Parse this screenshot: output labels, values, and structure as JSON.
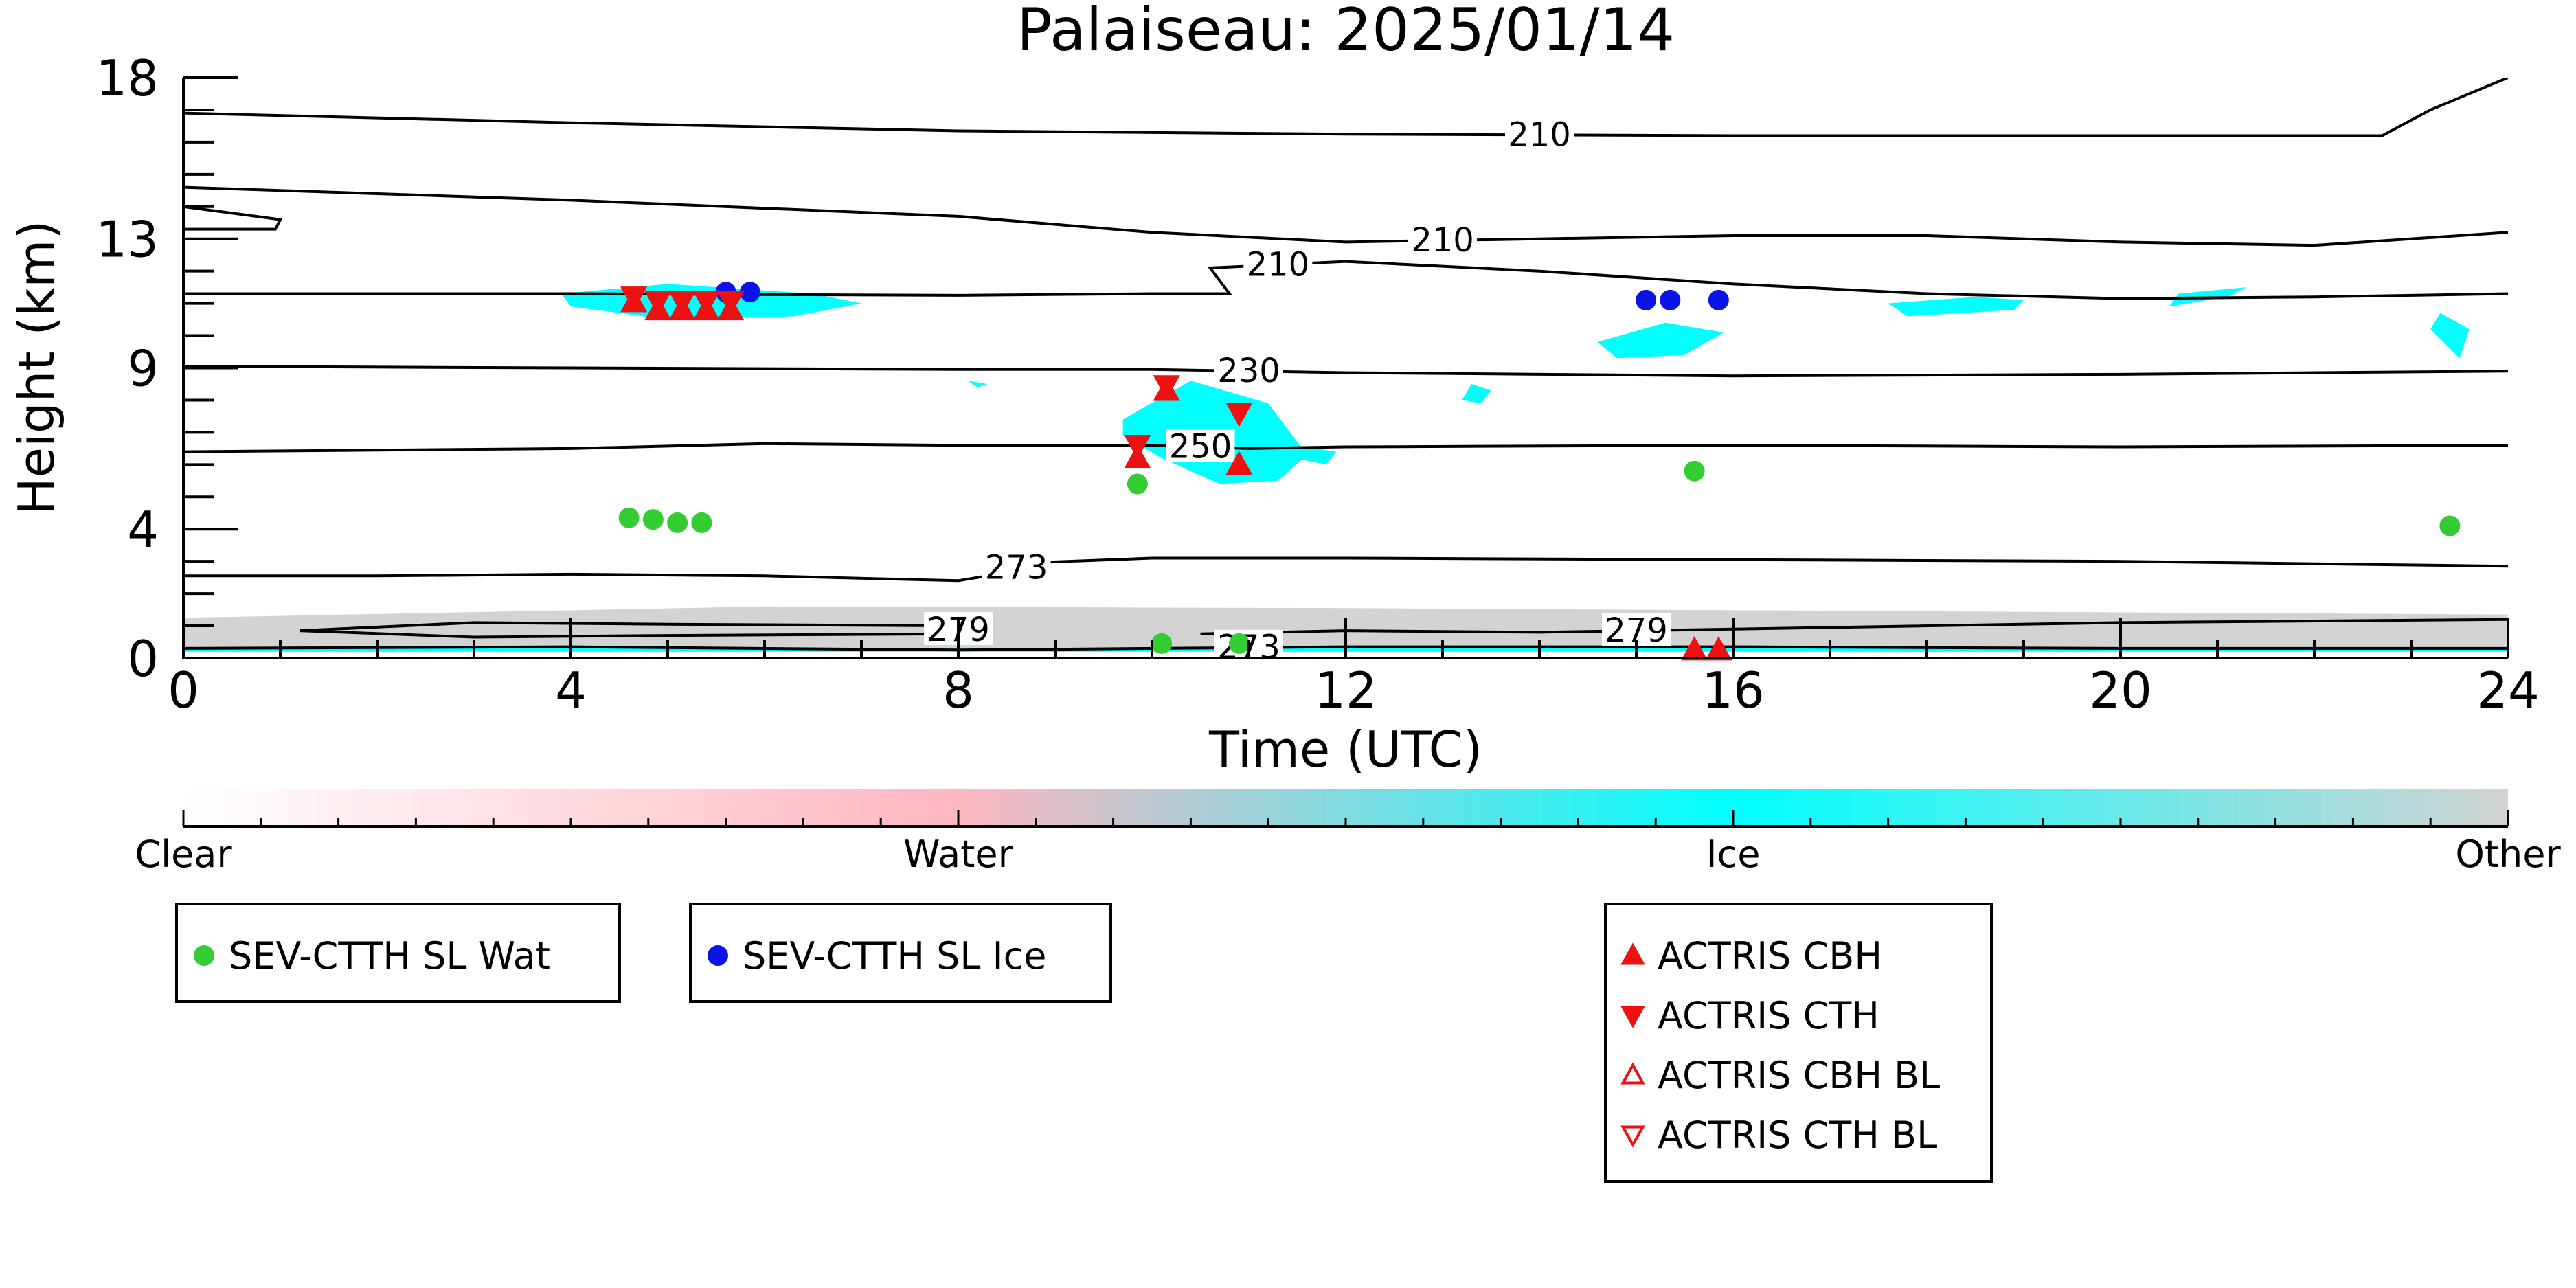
{
  "chart_data": {
    "type": "scatter",
    "title": "Palaiseau: 2025/01/14",
    "xlabel": "Time (UTC)",
    "ylabel": "Height (km)",
    "xlim": [
      0,
      24
    ],
    "ylim": [
      0,
      18
    ],
    "xticks": [
      0,
      4,
      8,
      12,
      16,
      20,
      24
    ],
    "yticks": [
      0,
      4,
      9,
      13,
      18
    ],
    "grid": false,
    "colorbar": {
      "labels": [
        "Clear",
        "Water",
        "Ice",
        "Other"
      ],
      "colors": [
        "#ffffff",
        "#ffb6c1",
        "#00ffff",
        "#d3d3d3"
      ]
    },
    "contours": [
      {
        "label": "210",
        "x": [
          0,
          4,
          8,
          12,
          16,
          20,
          22.7,
          23.2,
          24
        ],
        "y": [
          16.9,
          16.6,
          16.35,
          16.25,
          16.2,
          16.2,
          16.2,
          17.0,
          18.0
        ]
      },
      {
        "label": "210",
        "x": [
          0,
          4,
          8,
          10,
          12,
          14,
          16,
          18,
          20,
          22,
          24
        ],
        "y": [
          14.6,
          14.2,
          13.7,
          13.2,
          12.9,
          13.0,
          13.1,
          13.1,
          12.9,
          12.8,
          13.2
        ]
      },
      {
        "label": "210",
        "x": [
          0,
          4,
          8,
          10,
          10.8,
          10.6,
          12,
          14,
          16,
          18,
          20,
          22,
          24
        ],
        "y": [
          11.3,
          11.3,
          11.25,
          11.3,
          11.3,
          12.1,
          12.3,
          12.0,
          11.6,
          11.3,
          11.15,
          11.2,
          11.3
        ]
      },
      {
        "label": "230",
        "x": [
          0,
          4,
          8,
          10,
          12,
          16,
          20,
          24
        ],
        "y": [
          9.05,
          9.0,
          8.95,
          8.95,
          8.85,
          8.75,
          8.8,
          8.9
        ]
      },
      {
        "label": "250",
        "x": [
          0,
          4,
          6,
          8,
          10,
          11,
          12,
          16,
          20,
          24
        ],
        "y": [
          6.4,
          6.5,
          6.65,
          6.6,
          6.6,
          6.5,
          6.55,
          6.6,
          6.55,
          6.6
        ]
      },
      {
        "label": "273",
        "x": [
          0,
          2,
          4,
          6,
          8,
          8.5,
          8.7,
          10,
          12,
          16,
          20,
          24
        ],
        "y": [
          2.55,
          2.55,
          2.6,
          2.55,
          2.4,
          2.65,
          2.95,
          3.1,
          3.1,
          3.05,
          3.0,
          2.85
        ]
      },
      {
        "label": "279",
        "x": [
          1.2,
          3,
          5,
          8,
          8,
          5,
          3,
          1.2
        ],
        "y": [
          0.85,
          1.1,
          1.05,
          1.0,
          0.75,
          0.7,
          0.65,
          0.85
        ]
      },
      {
        "label": "273",
        "x": [
          0,
          4,
          8,
          10,
          12,
          16,
          20,
          24
        ],
        "y": [
          0.3,
          0.35,
          0.25,
          0.3,
          0.35,
          0.35,
          0.3,
          0.3
        ]
      },
      {
        "label": "279",
        "x": [
          10.5,
          12,
          14,
          16,
          20,
          24
        ],
        "y": [
          0.75,
          0.85,
          0.8,
          0.9,
          1.1,
          1.2
        ]
      },
      {
        "label": "",
        "x": [
          0,
          1,
          0.95,
          0
        ],
        "y": [
          14.0,
          13.6,
          13.3,
          13.3
        ]
      }
    ],
    "cloud_regions": [
      {
        "phase": "Ice",
        "x": [
          3.9,
          5.0,
          6.5,
          7.0,
          6.3,
          5.0,
          4.0
        ],
        "y": [
          11.3,
          11.6,
          11.3,
          11.0,
          10.6,
          10.5,
          10.9
        ]
      },
      {
        "phase": "Ice",
        "x": [
          9.7,
          10.4,
          11.2,
          11.6,
          11.3,
          10.7,
          10.1,
          9.7
        ],
        "y": [
          7.4,
          8.6,
          7.9,
          6.3,
          5.5,
          5.4,
          6.2,
          6.9
        ]
      },
      {
        "phase": "Ice",
        "x": [
          11.3,
          11.9,
          11.8,
          11.3
        ],
        "y": [
          6.7,
          6.4,
          6.0,
          6.3
        ]
      },
      {
        "phase": "Ice",
        "x": [
          14.6,
          15.3,
          15.9,
          15.5,
          14.8
        ],
        "y": [
          9.8,
          10.4,
          10.1,
          9.4,
          9.3
        ]
      },
      {
        "phase": "Ice",
        "x": [
          17.6,
          18.5,
          19.0,
          18.9,
          17.8
        ],
        "y": [
          11.0,
          11.2,
          11.1,
          10.8,
          10.6
        ]
      },
      {
        "phase": "Ice",
        "x": [
          20.6,
          21.3,
          21.1,
          20.5
        ],
        "y": [
          11.3,
          11.5,
          11.2,
          10.9
        ]
      },
      {
        "phase": "Ice",
        "x": [
          23.3,
          23.6,
          23.5,
          23.2
        ],
        "y": [
          10.7,
          10.2,
          9.3,
          10.2
        ]
      },
      {
        "phase": "Ice",
        "x": [
          13.3,
          13.5,
          13.4,
          13.2
        ],
        "y": [
          8.5,
          8.3,
          7.9,
          8.0
        ]
      },
      {
        "phase": "Ice",
        "x": [
          8.1,
          8.3,
          8.2
        ],
        "y": [
          8.6,
          8.5,
          8.4
        ]
      },
      {
        "phase": "Other",
        "x": [
          0,
          6,
          12,
          18,
          24,
          24,
          18,
          12,
          6,
          0
        ],
        "y": [
          1.25,
          1.6,
          1.55,
          1.45,
          1.35,
          0.3,
          0.3,
          0.3,
          0.3,
          0.3
        ]
      }
    ],
    "series": [
      {
        "name": "SEV-CTTH SL Wat",
        "marker": "circle",
        "color": "#33cc33",
        "x": [
          4.6,
          4.85,
          5.1,
          5.35,
          9.85,
          10.1,
          10.9,
          15.6,
          23.4
        ],
        "y": [
          4.35,
          4.3,
          4.2,
          4.2,
          5.4,
          0.45,
          0.45,
          5.8,
          4.1
        ]
      },
      {
        "name": "SEV-CTTH SL Ice",
        "marker": "circle",
        "color": "#0a14e6",
        "x": [
          5.6,
          5.85,
          15.1,
          15.35,
          15.85
        ],
        "y": [
          11.35,
          11.35,
          11.1,
          11.1,
          11.1
        ]
      },
      {
        "name": "ACTRIS CBH",
        "marker": "triangle-up-filled",
        "color": "#ee1111",
        "x": [
          4.65,
          4.9,
          5.15,
          5.4,
          5.65,
          9.85,
          10.15,
          10.9,
          15.6,
          15.85
        ],
        "y": [
          11.05,
          10.8,
          10.8,
          10.8,
          10.8,
          6.2,
          8.3,
          6.0,
          0.25,
          0.25
        ]
      },
      {
        "name": "ACTRIS CTH",
        "marker": "triangle-down-filled",
        "color": "#ee1111",
        "x": [
          4.65,
          4.9,
          5.15,
          5.4,
          5.65,
          9.85,
          10.15,
          10.9
        ],
        "y": [
          11.2,
          11.05,
          11.05,
          11.05,
          11.05,
          6.6,
          8.45,
          7.6
        ]
      },
      {
        "name": "ACTRIS CBH BL",
        "marker": "triangle-up-open",
        "color": "#ee1111",
        "x": [],
        "y": []
      },
      {
        "name": "ACTRIS CTH BL",
        "marker": "triangle-down-open",
        "color": "#ee1111",
        "x": [],
        "y": []
      }
    ]
  }
}
